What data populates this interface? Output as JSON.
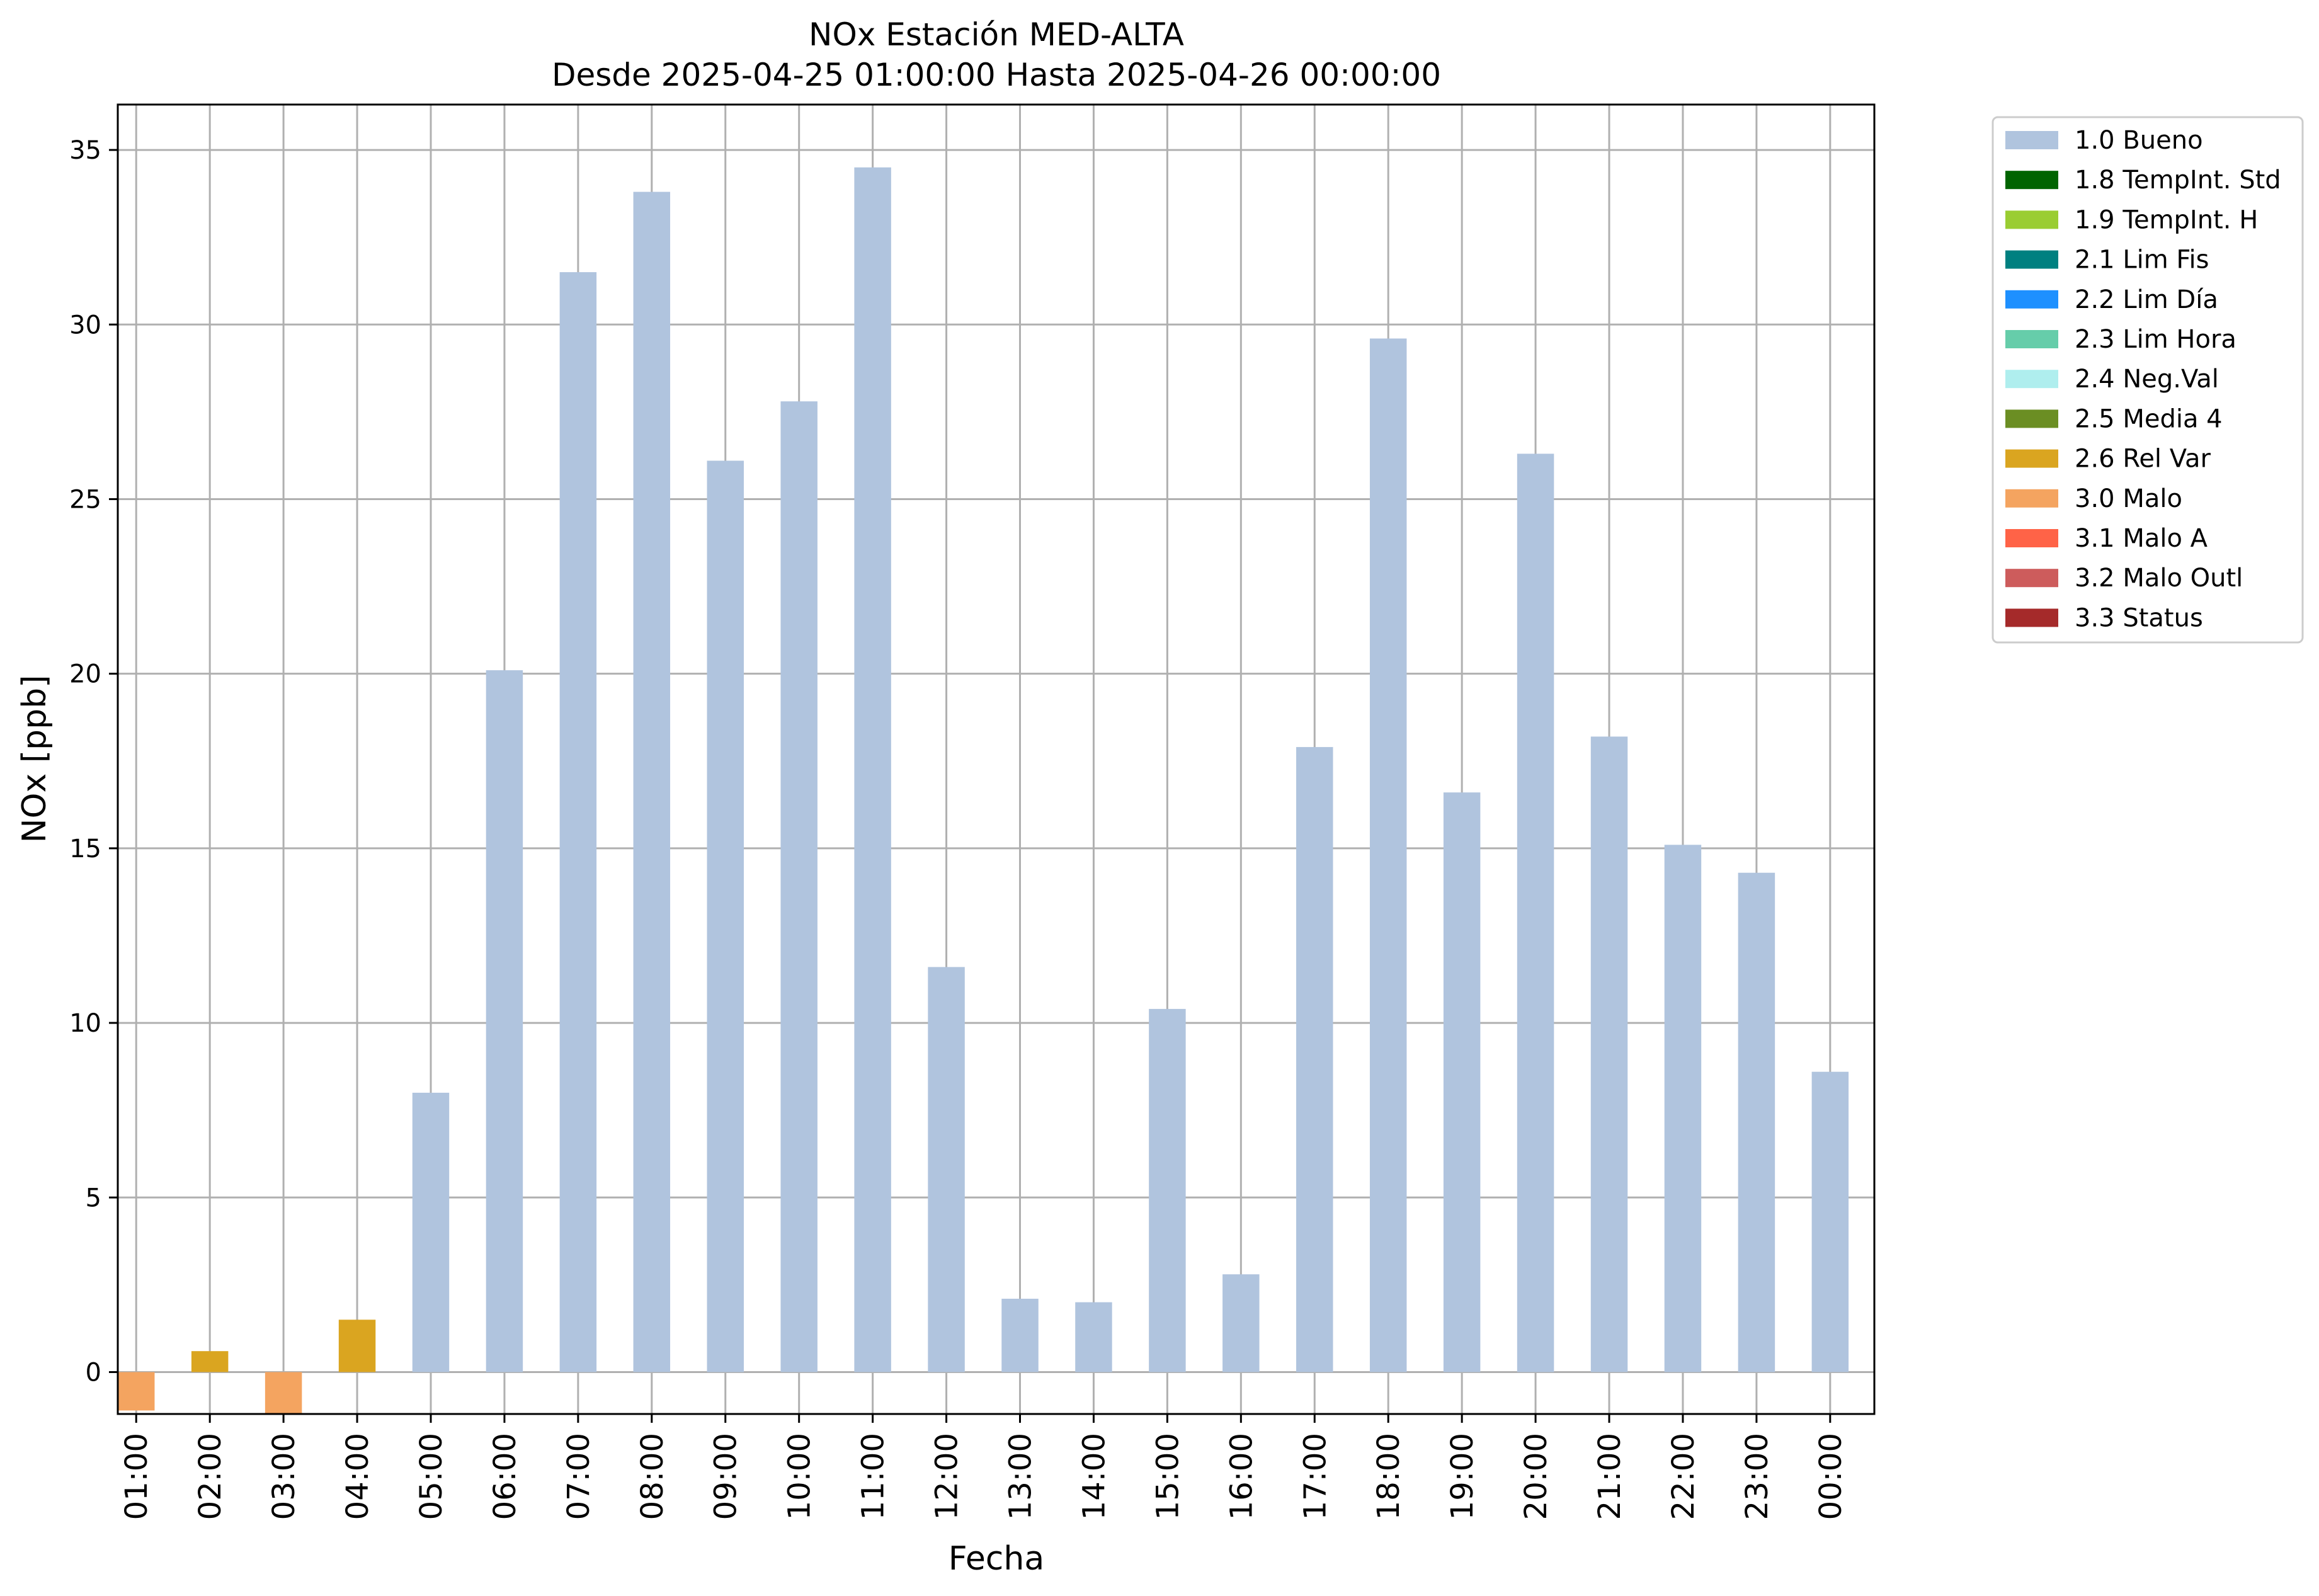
{
  "chart_data": {
    "type": "bar",
    "title": "NOx Estación MED-ALTA",
    "subtitle": "Desde 2025-04-25 01:00:00 Hasta 2025-04-26 00:00:00",
    "xlabel": "Fecha",
    "ylabel": "NOx [ppb]",
    "ylim": [
      -1.2,
      36.3
    ],
    "yticks": [
      0,
      5,
      10,
      15,
      20,
      25,
      30,
      35
    ],
    "grid": true,
    "legend_position": "outside-right",
    "categories": [
      "01:00",
      "02:00",
      "03:00",
      "04:00",
      "05:00",
      "06:00",
      "07:00",
      "08:00",
      "09:00",
      "10:00",
      "11:00",
      "12:00",
      "13:00",
      "14:00",
      "15:00",
      "16:00",
      "17:00",
      "18:00",
      "19:00",
      "20:00",
      "21:00",
      "22:00",
      "23:00",
      "00:00"
    ],
    "values": [
      -1.1,
      0.6,
      -1.2,
      1.5,
      8.0,
      20.1,
      31.5,
      33.8,
      26.1,
      27.8,
      34.5,
      11.6,
      2.1,
      2.0,
      10.4,
      2.8,
      17.9,
      29.6,
      16.6,
      26.3,
      18.2,
      15.1,
      14.3,
      8.6
    ],
    "flags": [
      "3.0 Malo",
      "2.6 Rel Var",
      "3.0 Malo",
      "2.6 Rel Var",
      "1.0 Bueno",
      "1.0 Bueno",
      "1.0 Bueno",
      "1.0 Bueno",
      "1.0 Bueno",
      "1.0 Bueno",
      "1.0 Bueno",
      "1.0 Bueno",
      "1.0 Bueno",
      "1.0 Bueno",
      "1.0 Bueno",
      "1.0 Bueno",
      "1.0 Bueno",
      "1.0 Bueno",
      "1.0 Bueno",
      "1.0 Bueno",
      "1.0 Bueno",
      "1.0 Bueno",
      "1.0 Bueno",
      "1.0 Bueno"
    ],
    "legend": [
      {
        "name": "1.0 Bueno",
        "color": "#b0c4de"
      },
      {
        "name": "1.8 TempInt. Std",
        "color": "#006400"
      },
      {
        "name": "1.9 TempInt. H",
        "color": "#9acd32"
      },
      {
        "name": "2.1 Lim Fis",
        "color": "#008080"
      },
      {
        "name": "2.2 Lim Día",
        "color": "#1e90ff"
      },
      {
        "name": "2.3 Lim Hora",
        "color": "#66cdaa"
      },
      {
        "name": "2.4 Neg.Val",
        "color": "#afeeee"
      },
      {
        "name": "2.5 Media 4",
        "color": "#6b8e23"
      },
      {
        "name": "2.6 Rel Var",
        "color": "#daa520"
      },
      {
        "name": "3.0 Malo",
        "color": "#f4a460"
      },
      {
        "name": "3.1 Malo A",
        "color": "#ff6347"
      },
      {
        "name": "3.2 Malo Outl",
        "color": "#cd5c5c"
      },
      {
        "name": "3.3 Status",
        "color": "#a52a2a"
      }
    ]
  }
}
